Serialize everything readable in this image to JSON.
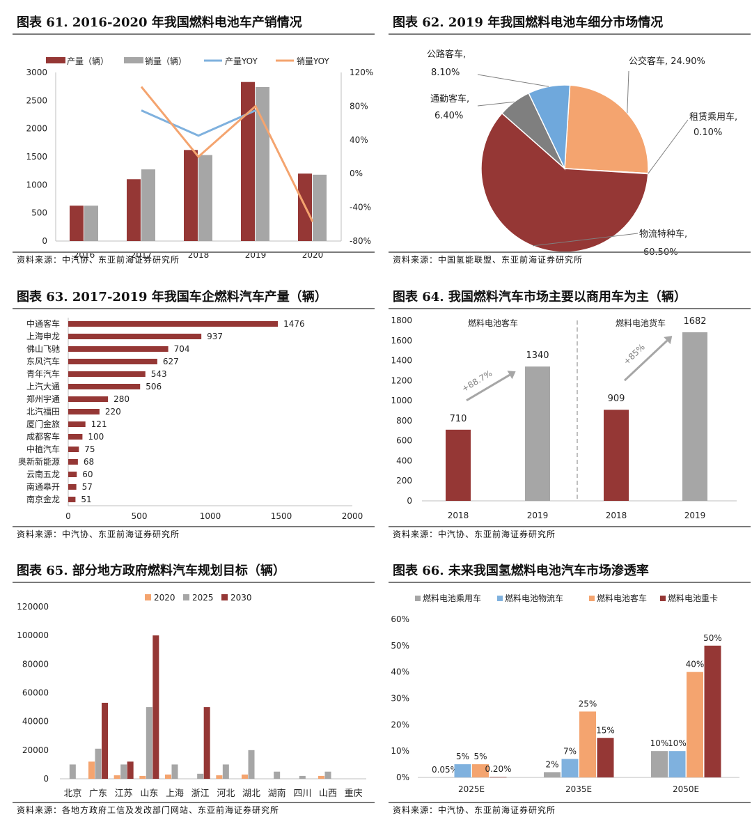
{
  "panels": [
    {
      "title": "图表 61. 2016-2020 年我国燃料电池车产销情况",
      "source": "资料来源：中汽协、东亚前海证券研究所"
    },
    {
      "title": "图表 62. 2019 年我国燃料电池车细分市场情况",
      "source": "资料来源：中国氢能联盟、东亚前海证券研究所"
    },
    {
      "title": "图表 63. 2017-2019 年我国车企燃料汽车产量（辆）",
      "source": "资料来源：中汽协、东亚前海证券研究所"
    },
    {
      "title": "图表 64. 我国燃料汽车市场主要以商用车为主（辆）",
      "source": "资料来源：中汽协、东亚前海证券研究所"
    },
    {
      "title": "图表 65. 部分地方政府燃料汽车规划目标（辆）",
      "source": "资料来源：各地方政府工信及发改部门网站、东亚前海证券研究所"
    },
    {
      "title": "图表 66. 未来我国氢燃料电池汽车市场渗透率",
      "source": "资料来源：中汽协、东亚前海证券研究所"
    }
  ],
  "colors": {
    "red": "#953735",
    "gray": "#a6a6a6",
    "blue": "#7fb1de",
    "orange": "#f4a46f",
    "darkgray": "#7f7f7f"
  },
  "chart_data": [
    {
      "type": "bar",
      "categories": [
        "2016",
        "2017",
        "2018",
        "2019",
        "2020"
      ],
      "series": [
        {
          "name": "产量（辆）",
          "values": [
            629,
            1100,
            1620,
            2830,
            1200
          ]
        },
        {
          "name": "销量（辆）",
          "values": [
            629,
            1275,
            1530,
            2740,
            1180
          ]
        },
        {
          "name": "产量YOY",
          "values": [
            null,
            75,
            45,
            75,
            null
          ],
          "axis": "right",
          "type": "line"
        },
        {
          "name": "销量YOY",
          "values": [
            null,
            103,
            20,
            80,
            -57
          ],
          "axis": "right",
          "type": "line"
        }
      ],
      "yticks": [
        "0",
        "500",
        "1000",
        "1500",
        "2000",
        "2500",
        "3000"
      ],
      "y2ticks": [
        "-80%",
        "-40%",
        "0%",
        "40%",
        "80%",
        "120%"
      ],
      "ylim": [
        0,
        3000
      ],
      "y2lim": [
        -80,
        120
      ]
    },
    {
      "type": "pie",
      "slices": [
        {
          "label": "公交客车,",
          "pct": "24.90%",
          "value": 24.9
        },
        {
          "label": "租赁乘用车,",
          "pct": "0.10%",
          "value": 0.1
        },
        {
          "label": "物流特种车,",
          "pct": "60.50%",
          "value": 60.5
        },
        {
          "label": "通勤客车,",
          "pct": "6.40%",
          "value": 6.4
        },
        {
          "label": "公路客车,",
          "pct": "8.10%",
          "value": 8.1
        }
      ]
    },
    {
      "type": "bar",
      "orientation": "horizontal",
      "categories": [
        "中通客车",
        "上海申龙",
        "佛山飞驰",
        "东风汽车",
        "青年汽车",
        "上汽大通",
        "郑州宇通",
        "北汽福田",
        "厦门金旅",
        "成都客车",
        "中植汽车",
        "奥新新能源",
        "云南五龙",
        "南通皋开",
        "南京金龙"
      ],
      "values": [
        1476,
        937,
        704,
        627,
        543,
        506,
        280,
        220,
        121,
        100,
        75,
        68,
        60,
        57,
        51
      ],
      "xticks": [
        "0",
        "500",
        "1000",
        "1500",
        "2000"
      ],
      "xlim": [
        0,
        2000
      ]
    },
    {
      "type": "bar",
      "groups": [
        {
          "name": "燃料电池客车",
          "growth": "+88.7%",
          "categories": [
            "2018",
            "2019"
          ],
          "values": [
            710,
            1340
          ]
        },
        {
          "name": "燃料电池货车",
          "growth": "+85%",
          "categories": [
            "2018",
            "2019"
          ],
          "values": [
            909,
            1682
          ]
        }
      ],
      "yticks": [
        "0",
        "200",
        "400",
        "600",
        "800",
        "1000",
        "1200",
        "1400",
        "1600",
        "1800"
      ],
      "ylim": [
        0,
        1800
      ]
    },
    {
      "type": "bar",
      "categories": [
        "北京",
        "广东",
        "江苏",
        "山东",
        "上海",
        "浙江",
        "河北",
        "湖北",
        "湖南",
        "四川",
        "山西",
        "重庆"
      ],
      "series": [
        {
          "name": "2020",
          "values": [
            0,
            12000,
            2500,
            2000,
            3000,
            0,
            2500,
            3000,
            0,
            0,
            2000,
            0
          ]
        },
        {
          "name": "2025",
          "values": [
            10000,
            21000,
            10000,
            50000,
            10000,
            3500,
            10000,
            20000,
            5000,
            2000,
            5000,
            0
          ]
        },
        {
          "name": "2030",
          "values": [
            0,
            53000,
            12000,
            100000,
            0,
            50000,
            0,
            0,
            0,
            0,
            0,
            0
          ]
        }
      ],
      "yticks": [
        "0",
        "20000",
        "40000",
        "60000",
        "80000",
        "100000",
        "120000"
      ],
      "ylim": [
        0,
        120000
      ]
    },
    {
      "type": "bar",
      "categories": [
        "2025E",
        "2035E",
        "2050E"
      ],
      "series": [
        {
          "name": "燃料电池乘用车",
          "values": [
            0.05,
            2,
            10
          ],
          "labels": [
            "0.05%",
            "2%",
            "10%"
          ]
        },
        {
          "name": "燃料电池物流车",
          "values": [
            5,
            7,
            10
          ],
          "labels": [
            "5%",
            "7%",
            "10%"
          ]
        },
        {
          "name": "燃料电池客车",
          "values": [
            5,
            25,
            40
          ],
          "labels": [
            "5%",
            "25%",
            "40%"
          ]
        },
        {
          "name": "燃料电池重卡",
          "values": [
            0.2,
            15,
            50
          ],
          "labels": [
            "0.20%",
            "15%",
            "50%"
          ]
        }
      ],
      "yticks": [
        "0%",
        "10%",
        "20%",
        "30%",
        "40%",
        "50%",
        "60%"
      ],
      "ylim": [
        0,
        60
      ]
    }
  ]
}
